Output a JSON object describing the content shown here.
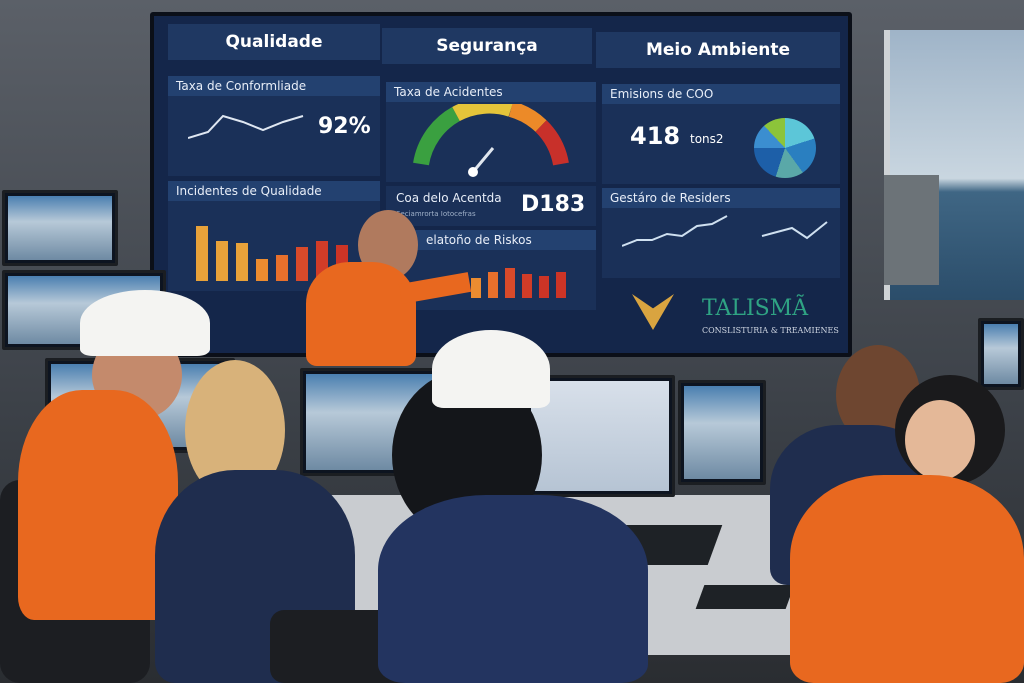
{
  "screen": {
    "sections": {
      "quality": "Qualidade",
      "safety": "Segurança",
      "environment": "Meio Ambiente"
    },
    "quality": {
      "compliance_title": "Taxa de Conformliade",
      "compliance_value": "92%",
      "incidents_title": "Incidentes de Qualidade"
    },
    "safety": {
      "accidents_title": "Taxa de Acidentes",
      "days_title": "Coa delo Acentda",
      "days_subtitle": "Seciamrorta Iotocefras",
      "days_value": "D183",
      "risks_title": "elatoño de Riskos"
    },
    "environment": {
      "emissions_title": "Emisions de COO",
      "emissions_value": "418",
      "emissions_unit": "tons2",
      "waste_title": "Gestáro de Residers"
    },
    "brand": {
      "name": "TALISMÃ",
      "tagline": "CONSLISTURIA & TREAMIENES"
    }
  },
  "colors": {
    "screen_bg": "#14264a",
    "accent_green": "#2fa383",
    "vest_orange": "#e8681f",
    "coverall_navy": "#1f2d4e"
  }
}
